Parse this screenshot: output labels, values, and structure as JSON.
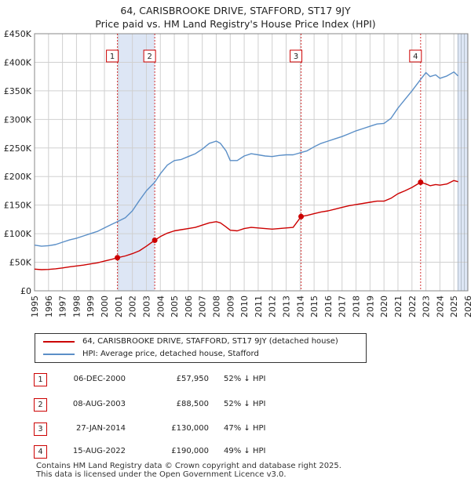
{
  "title": {
    "line1": "64, CARISBROOKE DRIVE, STAFFORD, ST17 9JY",
    "line2": "Price paid vs. HM Land Registry's House Price Index (HPI)"
  },
  "colors": {
    "price": "#cc0000",
    "hpi": "#5b8fc7",
    "shade": "#dde6f5",
    "grid": "#d0d0d0"
  },
  "legend": [
    {
      "label": "64, CARISBROOKE DRIVE, STAFFORD, ST17 9JY (detached house)",
      "color": "#cc0000"
    },
    {
      "label": "HPI: Average price, detached house, Stafford",
      "color": "#5b8fc7"
    }
  ],
  "transactions": [
    {
      "num": "1",
      "date": "06-DEC-2000",
      "price": "£57,950",
      "hpi": "52% ↓ HPI"
    },
    {
      "num": "2",
      "date": "08-AUG-2003",
      "price": "£88,500",
      "hpi": "52% ↓ HPI"
    },
    {
      "num": "3",
      "date": "27-JAN-2014",
      "price": "£130,000",
      "hpi": "47% ↓ HPI"
    },
    {
      "num": "4",
      "date": "15-AUG-2022",
      "price": "£190,000",
      "hpi": "49% ↓ HPI"
    }
  ],
  "footer": {
    "line1": "Contains HM Land Registry data © Crown copyright and database right 2025.",
    "line2": "This data is licensed under the Open Government Licence v3.0."
  },
  "chart_data": {
    "type": "line",
    "title": "Price paid vs. HM Land Registry's House Price Index (HPI)",
    "xlabel": "",
    "ylabel": "",
    "xlim": [
      1995,
      2026
    ],
    "ylim": [
      0,
      450000
    ],
    "x_ticks": [
      1995,
      1996,
      1997,
      1998,
      1999,
      2000,
      2001,
      2002,
      2003,
      2004,
      2005,
      2006,
      2007,
      2008,
      2009,
      2010,
      2011,
      2012,
      2013,
      2014,
      2015,
      2016,
      2017,
      2018,
      2019,
      2020,
      2021,
      2022,
      2023,
      2024,
      2025,
      2026
    ],
    "y_ticks": [
      0,
      50000,
      100000,
      150000,
      200000,
      250000,
      300000,
      350000,
      400000,
      450000
    ],
    "y_tick_labels": [
      "£0",
      "£50K",
      "£100K",
      "£150K",
      "£200K",
      "£250K",
      "£300K",
      "£350K",
      "£400K",
      "£450K"
    ],
    "grid": true,
    "shaded_periods": [
      [
        2000.93,
        2003.6
      ],
      [
        2025.25,
        2026
      ]
    ],
    "markers": [
      {
        "label": "1",
        "x": 2000.93,
        "y": 57950
      },
      {
        "label": "2",
        "x": 2003.6,
        "y": 88500
      },
      {
        "label": "3",
        "x": 2014.07,
        "y": 130000
      },
      {
        "label": "4",
        "x": 2022.62,
        "y": 190000
      }
    ],
    "series": [
      {
        "name": "HPI: Average price, detached house, Stafford",
        "color": "#5b8fc7",
        "points": [
          [
            1995,
            80000
          ],
          [
            1995.5,
            78000
          ],
          [
            1996,
            79000
          ],
          [
            1996.5,
            81000
          ],
          [
            1997,
            85000
          ],
          [
            1997.5,
            89000
          ],
          [
            1998,
            92000
          ],
          [
            1998.5,
            96000
          ],
          [
            1999,
            100000
          ],
          [
            1999.5,
            104000
          ],
          [
            2000,
            110000
          ],
          [
            2000.5,
            116000
          ],
          [
            2000.93,
            121000
          ],
          [
            2001.5,
            128000
          ],
          [
            2002,
            140000
          ],
          [
            2002.5,
            158000
          ],
          [
            2003,
            175000
          ],
          [
            2003.6,
            190000
          ],
          [
            2004,
            205000
          ],
          [
            2004.5,
            220000
          ],
          [
            2005,
            228000
          ],
          [
            2005.5,
            230000
          ],
          [
            2006,
            235000
          ],
          [
            2006.5,
            240000
          ],
          [
            2007,
            248000
          ],
          [
            2007.5,
            258000
          ],
          [
            2008,
            262000
          ],
          [
            2008.3,
            258000
          ],
          [
            2008.7,
            245000
          ],
          [
            2009,
            228000
          ],
          [
            2009.5,
            228000
          ],
          [
            2010,
            236000
          ],
          [
            2010.5,
            240000
          ],
          [
            2011,
            238000
          ],
          [
            2011.5,
            236000
          ],
          [
            2012,
            235000
          ],
          [
            2012.5,
            237000
          ],
          [
            2013,
            238000
          ],
          [
            2013.5,
            238000
          ],
          [
            2014.07,
            242000
          ],
          [
            2014.5,
            245000
          ],
          [
            2015,
            252000
          ],
          [
            2015.5,
            258000
          ],
          [
            2016,
            262000
          ],
          [
            2016.5,
            266000
          ],
          [
            2017,
            270000
          ],
          [
            2017.5,
            275000
          ],
          [
            2018,
            280000
          ],
          [
            2018.5,
            284000
          ],
          [
            2019,
            288000
          ],
          [
            2019.5,
            292000
          ],
          [
            2020,
            293000
          ],
          [
            2020.5,
            302000
          ],
          [
            2021,
            320000
          ],
          [
            2021.5,
            335000
          ],
          [
            2022,
            350000
          ],
          [
            2022.62,
            370000
          ],
          [
            2023,
            382000
          ],
          [
            2023.3,
            375000
          ],
          [
            2023.7,
            378000
          ],
          [
            2024,
            372000
          ],
          [
            2024.5,
            376000
          ],
          [
            2025,
            383000
          ],
          [
            2025.3,
            376000
          ]
        ]
      },
      {
        "name": "64, CARISBROOKE DRIVE, STAFFORD, ST17 9JY (detached house)",
        "color": "#cc0000",
        "points": [
          [
            1995,
            38000
          ],
          [
            1995.5,
            37000
          ],
          [
            1996,
            37500
          ],
          [
            1996.5,
            38500
          ],
          [
            1997,
            40000
          ],
          [
            1997.5,
            42000
          ],
          [
            1998,
            43500
          ],
          [
            1998.5,
            45000
          ],
          [
            1999,
            47000
          ],
          [
            1999.5,
            49000
          ],
          [
            2000,
            52000
          ],
          [
            2000.5,
            55000
          ],
          [
            2000.93,
            57950
          ],
          [
            2001.5,
            61000
          ],
          [
            2002,
            65000
          ],
          [
            2002.5,
            70000
          ],
          [
            2003,
            78000
          ],
          [
            2003.6,
            88500
          ],
          [
            2004,
            95000
          ],
          [
            2004.5,
            101000
          ],
          [
            2005,
            105000
          ],
          [
            2005.5,
            107000
          ],
          [
            2006,
            109000
          ],
          [
            2006.5,
            111000
          ],
          [
            2007,
            115000
          ],
          [
            2007.5,
            119000
          ],
          [
            2008,
            121000
          ],
          [
            2008.3,
            119000
          ],
          [
            2008.7,
            112000
          ],
          [
            2009,
            106000
          ],
          [
            2009.5,
            105000
          ],
          [
            2010,
            109000
          ],
          [
            2010.5,
            111000
          ],
          [
            2011,
            110000
          ],
          [
            2011.5,
            109000
          ],
          [
            2012,
            108000
          ],
          [
            2012.5,
            109000
          ],
          [
            2013,
            110000
          ],
          [
            2013.5,
            111000
          ],
          [
            2014.07,
            130000
          ],
          [
            2014.5,
            132000
          ],
          [
            2015,
            135000
          ],
          [
            2015.5,
            138000
          ],
          [
            2016,
            140000
          ],
          [
            2016.5,
            143000
          ],
          [
            2017,
            146000
          ],
          [
            2017.5,
            149000
          ],
          [
            2018,
            151000
          ],
          [
            2018.5,
            153000
          ],
          [
            2019,
            155000
          ],
          [
            2019.5,
            157000
          ],
          [
            2020,
            157000
          ],
          [
            2020.5,
            162000
          ],
          [
            2021,
            170000
          ],
          [
            2021.5,
            175000
          ],
          [
            2022,
            181000
          ],
          [
            2022.62,
            190000
          ],
          [
            2023,
            187000
          ],
          [
            2023.3,
            184000
          ],
          [
            2023.7,
            186000
          ],
          [
            2024,
            185000
          ],
          [
            2024.5,
            187000
          ],
          [
            2025,
            193000
          ],
          [
            2025.3,
            191000
          ]
        ]
      }
    ]
  }
}
